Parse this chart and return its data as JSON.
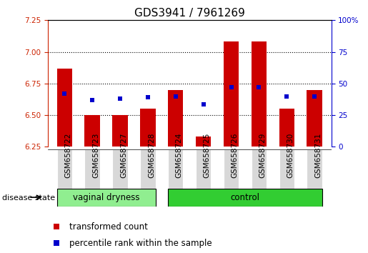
{
  "title": "GDS3941 / 7961269",
  "samples": [
    "GSM658722",
    "GSM658723",
    "GSM658727",
    "GSM658728",
    "GSM658724",
    "GSM658725",
    "GSM658726",
    "GSM658729",
    "GSM658730",
    "GSM658731"
  ],
  "groups": [
    "vaginal dryness",
    "vaginal dryness",
    "vaginal dryness",
    "vaginal dryness",
    "control",
    "control",
    "control",
    "control",
    "control",
    "control"
  ],
  "red_bar_top": [
    6.87,
    6.5,
    6.5,
    6.55,
    6.7,
    6.33,
    7.08,
    7.08,
    6.55,
    6.7
  ],
  "blue_square_val": [
    6.67,
    6.62,
    6.63,
    6.64,
    6.65,
    6.585,
    6.72,
    6.72,
    6.645,
    6.645
  ],
  "baseline": 6.25,
  "ylim_left": [
    6.25,
    7.25
  ],
  "yticks_left": [
    6.25,
    6.5,
    6.75,
    7.0,
    7.25
  ],
  "ylim_right": [
    0,
    100
  ],
  "yticks_right": [
    0,
    25,
    50,
    75,
    100
  ],
  "bar_color": "#cc0000",
  "bar_width": 0.55,
  "square_color": "#0000cc",
  "square_size": 5,
  "group_colors": {
    "vaginal dryness": "#90ee90",
    "control": "#32cd32"
  },
  "group_label": "disease state",
  "legend_red": "transformed count",
  "legend_blue": "percentile rank within the sample",
  "grid_yticks": [
    6.5,
    6.75,
    7.0
  ],
  "title_fontsize": 11,
  "tick_label_fontsize": 7.5,
  "axis_label_fontsize": 9,
  "left_tick_color": "#cc2200",
  "right_tick_color": "#0000cc"
}
